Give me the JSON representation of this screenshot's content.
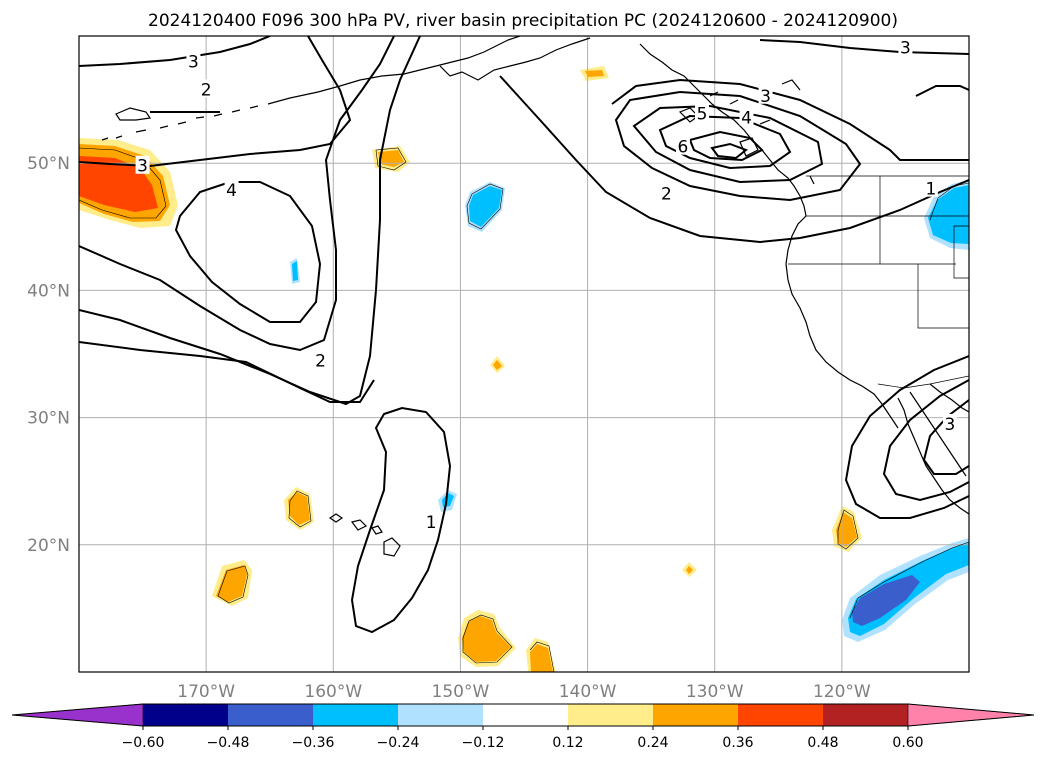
{
  "title": "2024120400 F096 300 hPa PV, river basin precipitation PC (2024120600 - 2024120900)",
  "map": {
    "lon_range": [
      -180,
      -110
    ],
    "lat_range": [
      10,
      60
    ],
    "lon_ticks": [
      {
        "value": -170,
        "label": "170°W"
      },
      {
        "value": -160,
        "label": "160°W"
      },
      {
        "value": -150,
        "label": "150°W"
      },
      {
        "value": -140,
        "label": "140°W"
      },
      {
        "value": -130,
        "label": "130°W"
      },
      {
        "value": -120,
        "label": "120°W"
      }
    ],
    "lat_ticks": [
      {
        "value": 50,
        "label": "50°N"
      },
      {
        "value": 40,
        "label": "40°N"
      },
      {
        "value": 30,
        "label": "30°N"
      },
      {
        "value": 20,
        "label": "20°N"
      }
    ],
    "grid": true
  },
  "pv_contour_labels": [
    {
      "text": "3",
      "lon": -171,
      "lat": 58.0
    },
    {
      "text": "2",
      "lon": -170,
      "lat": 55.8
    },
    {
      "text": "3",
      "lon": -175,
      "lat": 49.8
    },
    {
      "text": "4",
      "lon": -168,
      "lat": 47.9
    },
    {
      "text": "2",
      "lon": -161,
      "lat": 34.5
    },
    {
      "text": "1",
      "lon": -152.3,
      "lat": 21.8
    },
    {
      "text": "3",
      "lon": -115,
      "lat": 59.1
    },
    {
      "text": "3",
      "lon": -126,
      "lat": 55.3
    },
    {
      "text": "4",
      "lon": -127.5,
      "lat": 53.6
    },
    {
      "text": "5",
      "lon": -131,
      "lat": 53.9
    },
    {
      "text": "6",
      "lon": -132.5,
      "lat": 51.3
    },
    {
      "text": "2",
      "lon": -133.8,
      "lat": 47.6
    },
    {
      "text": "1",
      "lon": -113,
      "lat": 48.0
    },
    {
      "text": "3",
      "lon": -111.5,
      "lat": 29.5
    }
  ],
  "colorbar": {
    "colors": [
      "#9932cc",
      "#00008b",
      "#3a5fcd",
      "#00bfff",
      "#b0e2ff",
      "#ffffff",
      "#ffec8b",
      "#ffa500",
      "#ff4500",
      "#b22222",
      "#ff82ab"
    ],
    "boundaries": [
      -0.6,
      -0.48,
      -0.36,
      -0.24,
      -0.12,
      0.12,
      0.24,
      0.36,
      0.48,
      0.6
    ],
    "labels": [
      "−0.60",
      "−0.48",
      "−0.36",
      "−0.24",
      "−0.12",
      "0.12",
      "0.24",
      "0.36",
      "0.48",
      "0.60"
    ],
    "extend": "both"
  }
}
